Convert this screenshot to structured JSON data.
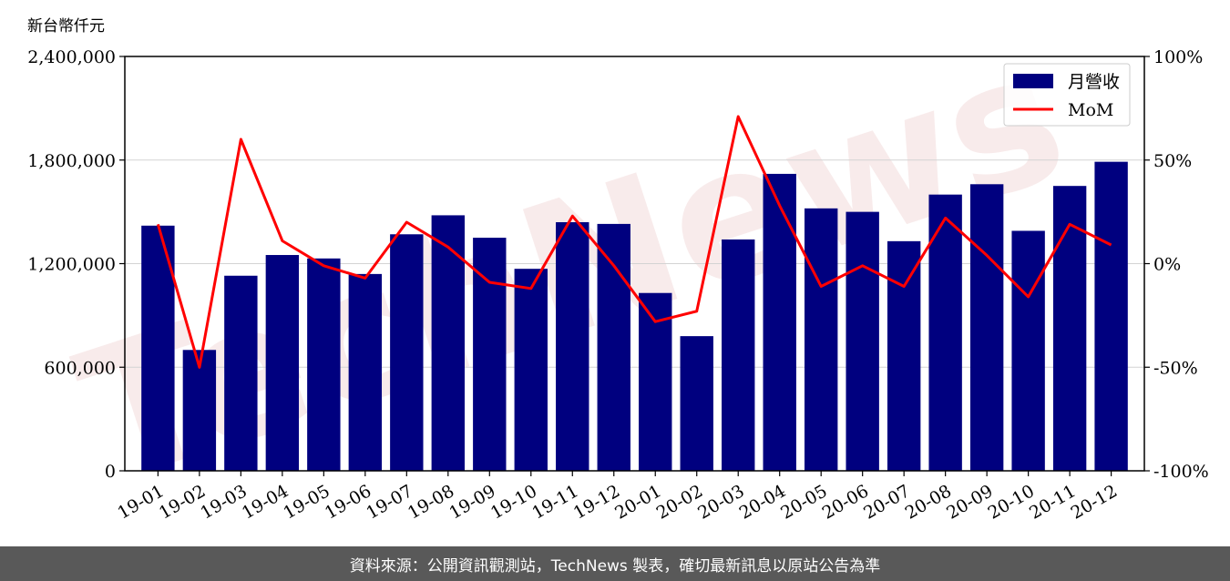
{
  "unit_label": "新台幣仟元",
  "footer_text": "資料來源：公開資訊觀測站，TechNews 製表，確切最新訊息以原站公告為準",
  "watermark": "TechNews",
  "chart_data": {
    "type": "bar",
    "categories": [
      "19-01",
      "19-02",
      "19-03",
      "19-04",
      "19-05",
      "19-06",
      "19-07",
      "19-08",
      "19-09",
      "19-10",
      "19-11",
      "19-12",
      "20-01",
      "20-02",
      "20-03",
      "20-04",
      "20-05",
      "20-06",
      "20-07",
      "20-08",
      "20-09",
      "20-10",
      "20-11",
      "20-12"
    ],
    "series": [
      {
        "name": "月營收",
        "type": "bar",
        "axis": "left",
        "color": "#00007f",
        "values": [
          1420000,
          700000,
          1130000,
          1250000,
          1230000,
          1140000,
          1370000,
          1480000,
          1350000,
          1170000,
          1440000,
          1430000,
          1030000,
          780000,
          1340000,
          1720000,
          1520000,
          1500000,
          1330000,
          1600000,
          1660000,
          1390000,
          1650000,
          1790000
        ]
      },
      {
        "name": "MoM",
        "type": "line",
        "axis": "right",
        "color": "#ff0000",
        "values": [
          19,
          -50,
          60,
          11,
          -1,
          -7,
          20,
          8,
          -9,
          -12,
          23,
          -1,
          -28,
          -23,
          71,
          28,
          -11,
          -1,
          -11,
          22,
          4,
          -16,
          19,
          9
        ]
      }
    ],
    "ylim_left": [
      0,
      2400000
    ],
    "ylim_right": [
      -100,
      100
    ],
    "yticks_left": [
      "0",
      "600,000",
      "1,200,000",
      "1,800,000",
      "2,400,000"
    ],
    "yticks_left_values": [
      0,
      600000,
      1200000,
      1800000,
      2400000
    ],
    "yticks_right": [
      "-100%",
      "-50%",
      "0%",
      "50%",
      "100%"
    ],
    "yticks_right_values": [
      -100,
      -50,
      0,
      50,
      100
    ],
    "ylabel": "新台幣仟元",
    "grid": true,
    "legend_position": "top-right"
  }
}
